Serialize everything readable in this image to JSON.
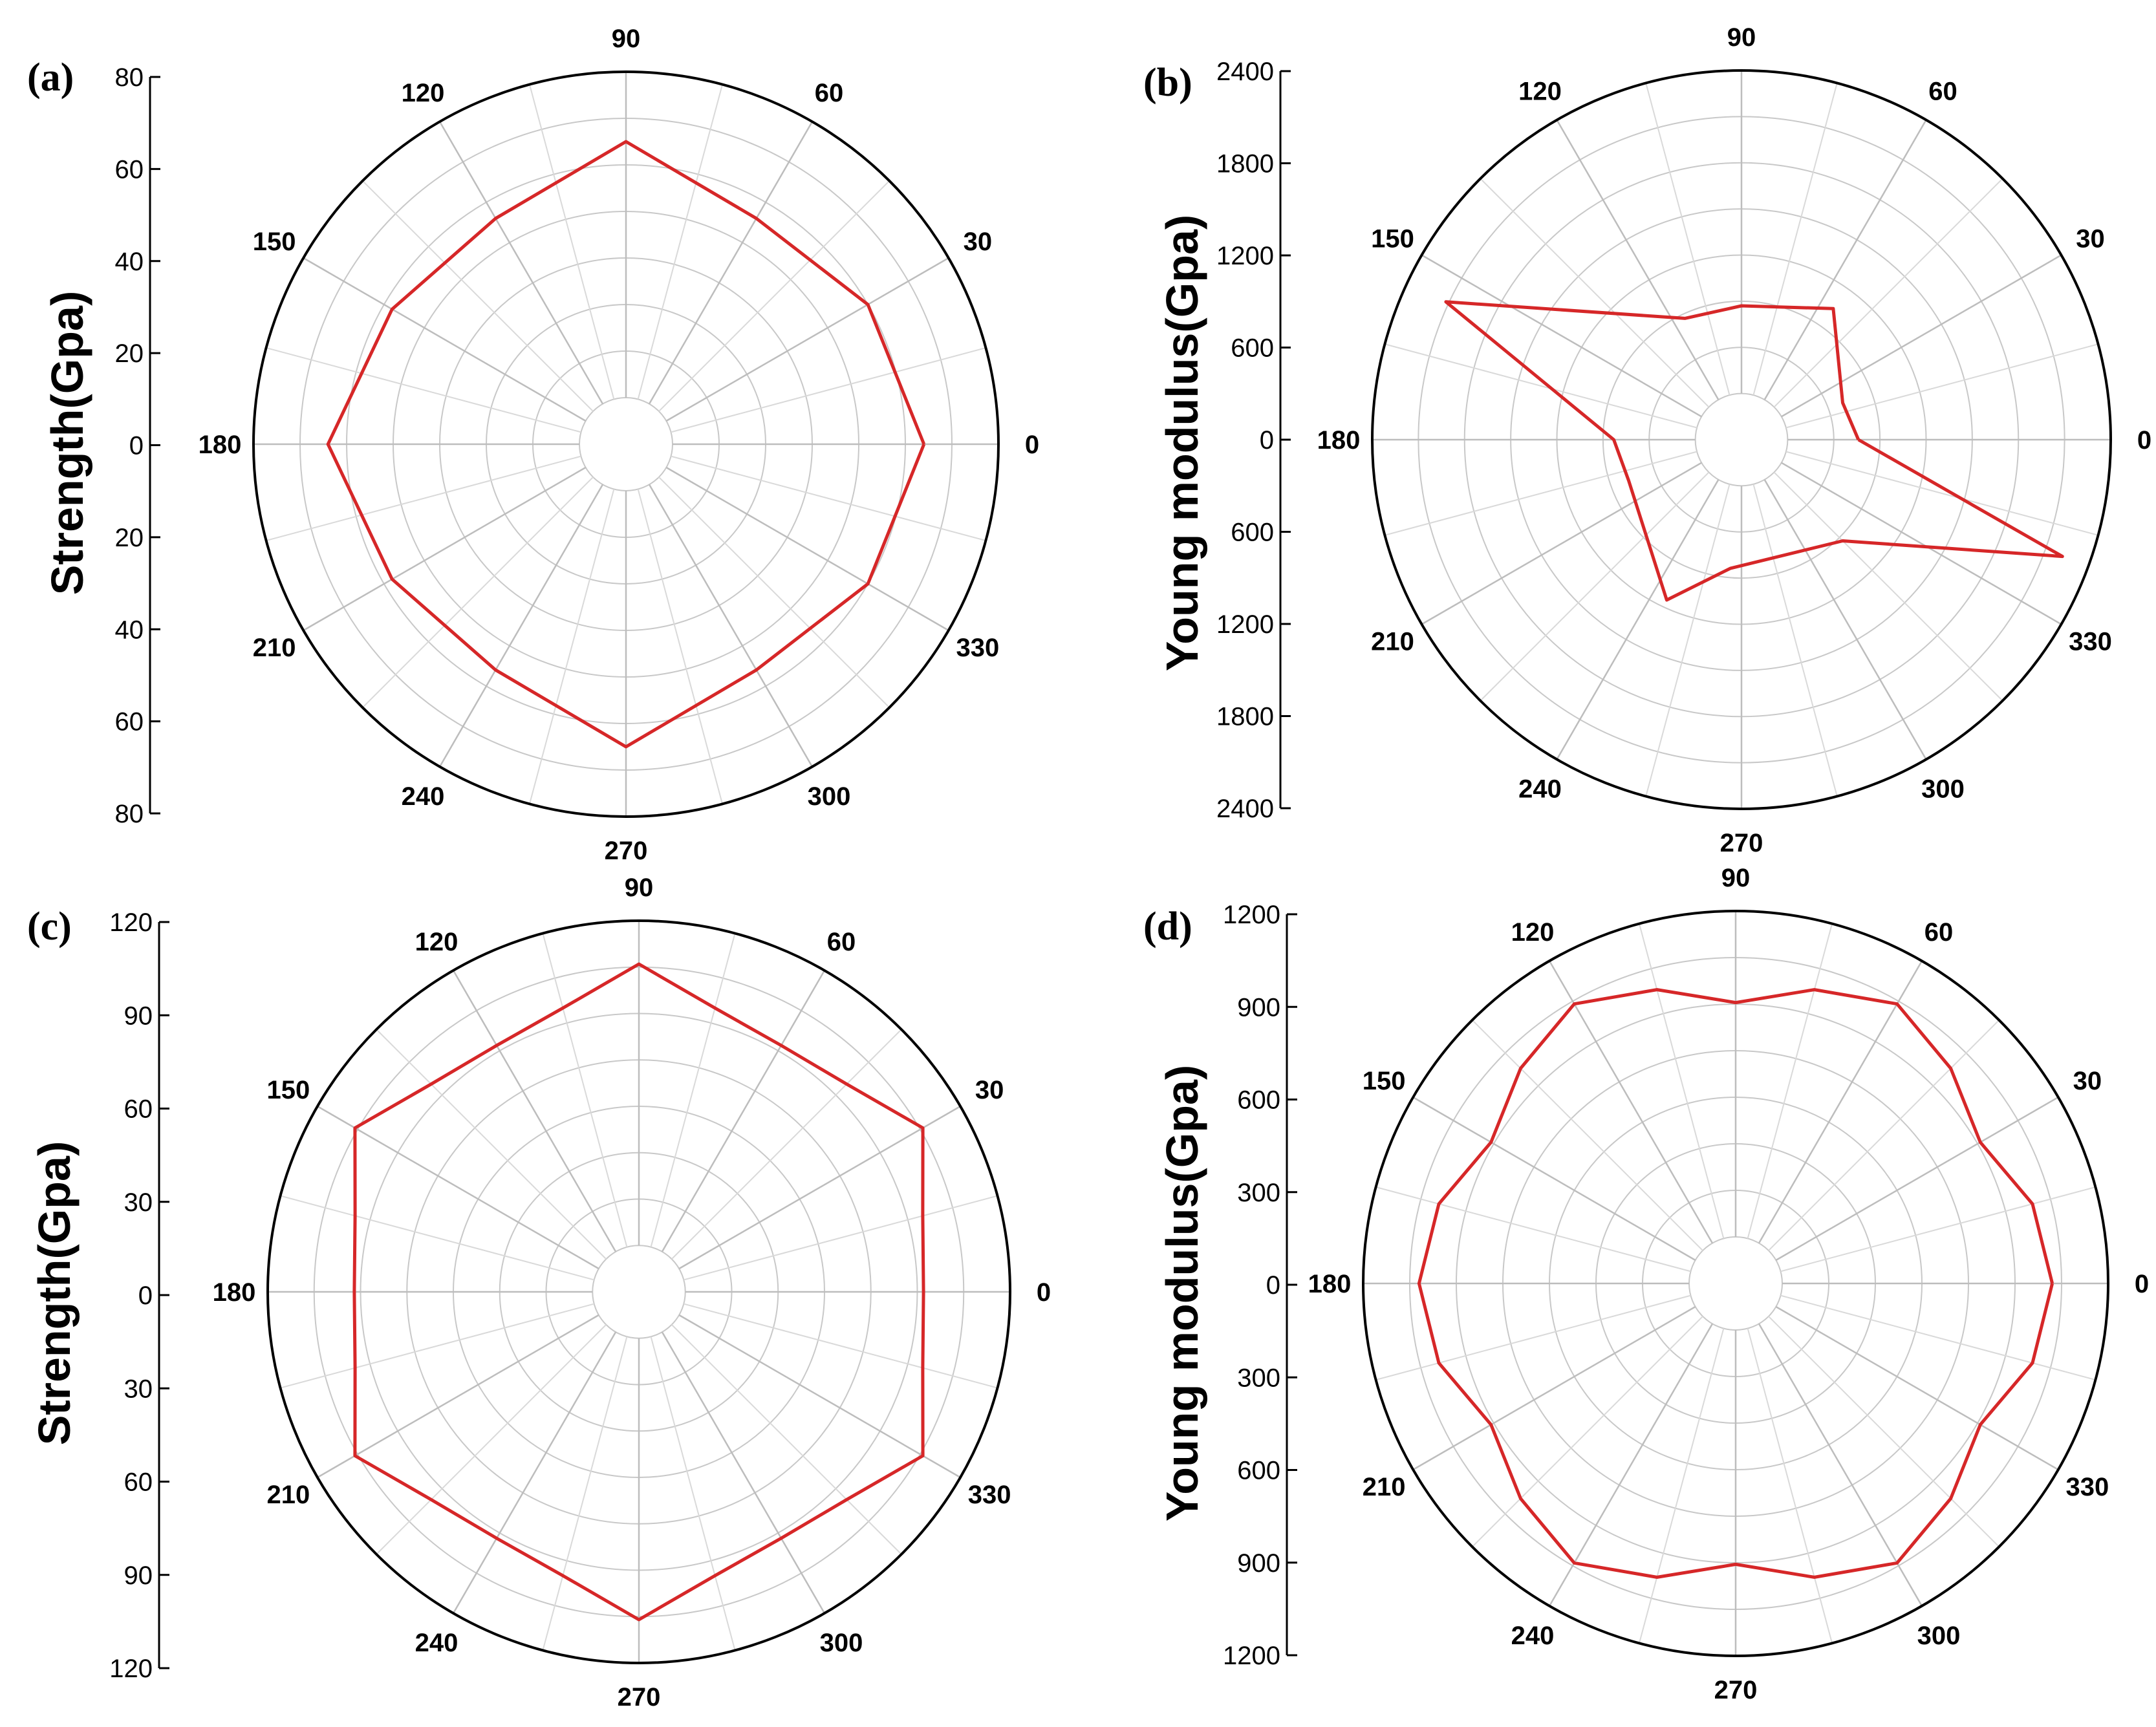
{
  "colors": {
    "series": "#d62728",
    "grid": "#c8c8c8",
    "axis": "#000000",
    "background": "#ffffff"
  },
  "chart_data": [
    {
      "type": "polar-line",
      "panel_label": "(a)",
      "ylabel": "Strength(Gpa)",
      "rmax": 80,
      "hole": 10,
      "r_ticks": [
        0,
        20,
        40,
        60,
        80
      ],
      "tick_labels": [
        "80",
        "60",
        "40",
        "20",
        "0",
        "20",
        "40",
        "60",
        "80"
      ],
      "angle_labels": [
        "0",
        "30",
        "60",
        "90",
        "120",
        "150",
        "180",
        "210",
        "240",
        "270",
        "300",
        "330"
      ],
      "series": [
        {
          "name": "Strength",
          "theta": [
            0,
            30,
            60,
            90,
            120,
            150,
            180,
            210,
            240,
            270,
            300,
            330,
            360
          ],
          "r": [
            64,
            60,
            56,
            65,
            56,
            58,
            64,
            58,
            56,
            65,
            56,
            60,
            64
          ]
        }
      ]
    },
    {
      "type": "polar-line",
      "panel_label": "(b)",
      "ylabel": "Young modulus(Gpa)",
      "rmax": 2400,
      "hole": 300,
      "r_ticks": [
        0,
        600,
        1200,
        1800,
        2400
      ],
      "tick_labels": [
        "2400",
        "1800",
        "1200",
        "600",
        "0",
        "600",
        "1200",
        "1800",
        "2400"
      ],
      "angle_labels": [
        "0",
        "30",
        "60",
        "90",
        "120",
        "150",
        "180",
        "210",
        "240",
        "270",
        "300",
        "330"
      ],
      "series": [
        {
          "name": "Young modulus",
          "theta": [
            0,
            20,
            55,
            90,
            115,
            155,
            180,
            200,
            245,
            265,
            315,
            340,
            360
          ],
          "r": [
            760,
            700,
            1040,
            870,
            870,
            2120,
            830,
            780,
            1150,
            840,
            930,
            2220,
            760
          ]
        }
      ]
    },
    {
      "type": "polar-line",
      "panel_label": "(c)",
      "ylabel": "Strength(Gpa)",
      "rmax": 120,
      "hole": 15,
      "r_ticks": [
        0,
        30,
        60,
        90,
        120
      ],
      "tick_labels": [
        "120",
        "90",
        "60",
        "30",
        "0",
        "30",
        "60",
        "90",
        "120"
      ],
      "angle_labels": [
        "0",
        "30",
        "60",
        "90",
        "120",
        "150",
        "180",
        "210",
        "240",
        "270",
        "300",
        "330"
      ],
      "series": [
        {
          "name": "Strength",
          "theta": [
            0,
            15,
            30,
            45,
            60,
            75,
            90,
            105,
            120,
            135,
            150,
            165,
            180,
            195,
            210,
            225,
            240,
            255,
            270,
            285,
            300,
            315,
            330,
            345,
            360
          ],
          "r": [
            92,
            95,
            106,
            95,
            92,
            95,
            106,
            95,
            92,
            95,
            106,
            95,
            92,
            95,
            106,
            95,
            92,
            95,
            106,
            95,
            92,
            95,
            106,
            95,
            92
          ]
        }
      ]
    },
    {
      "type": "polar-line",
      "panel_label": "(d)",
      "ylabel": "Young modulus(Gpa)",
      "rmax": 1200,
      "hole": 150,
      "r_ticks": [
        0,
        300,
        600,
        900,
        1200
      ],
      "tick_labels": [
        "1200",
        "900",
        "600",
        "300",
        "0",
        "300",
        "600",
        "900",
        "1200"
      ],
      "angle_labels": [
        "0",
        "30",
        "60",
        "90",
        "120",
        "150",
        "180",
        "210",
        "240",
        "270",
        "300",
        "330"
      ],
      "series": [
        {
          "name": "Young modulus",
          "theta": [
            0,
            15,
            30,
            45,
            60,
            75,
            90,
            105,
            120,
            135,
            150,
            165,
            180,
            195,
            210,
            225,
            240,
            255,
            270,
            285,
            300,
            315,
            330,
            345,
            360
          ],
          "r": [
            1020,
            990,
            910,
            980,
            1040,
            980,
            905,
            980,
            1040,
            980,
            910,
            990,
            1020,
            990,
            910,
            980,
            1040,
            980,
            905,
            980,
            1040,
            980,
            910,
            990,
            1020
          ]
        }
      ]
    }
  ]
}
